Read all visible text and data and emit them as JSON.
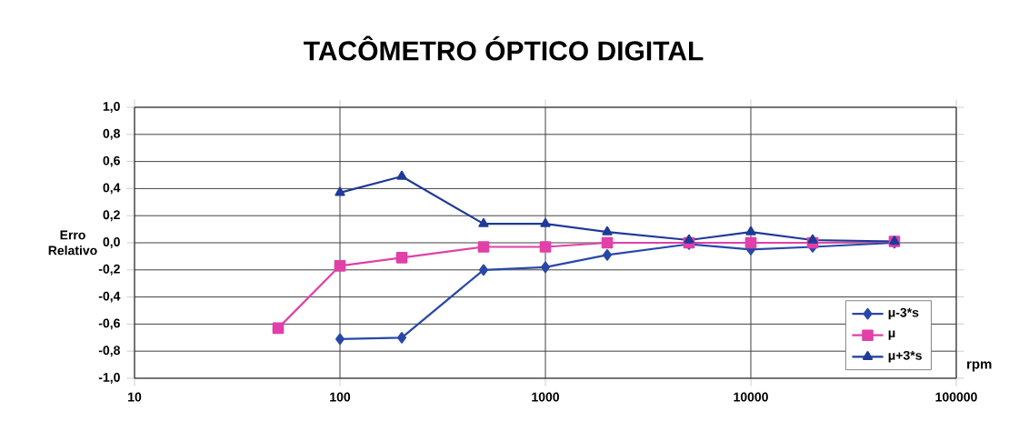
{
  "chart_data": {
    "type": "line",
    "title": "TACÔMETRO ÓPTICO DIGITAL",
    "xlabel": "rpm",
    "ylabel": "Erro Relativo",
    "x": [
      50,
      100,
      200,
      500,
      1000,
      2000,
      5000,
      10000,
      20000,
      50000
    ],
    "series": [
      {
        "name": "μ-3*s",
        "color": "#2848a8",
        "marker": "diamond",
        "values": [
          null,
          -0.71,
          -0.7,
          -0.2,
          -0.18,
          -0.09,
          -0.01,
          -0.05,
          -0.03,
          0.0
        ]
      },
      {
        "name": "μ",
        "color": "#e040a8",
        "marker": "square",
        "values": [
          -0.63,
          -0.17,
          -0.11,
          -0.03,
          -0.03,
          0.0,
          0.0,
          0.0,
          0.0,
          0.01
        ]
      },
      {
        "name": "μ+3*s",
        "color": "#1f3a98",
        "marker": "triangle",
        "values": [
          null,
          0.37,
          0.49,
          0.14,
          0.14,
          0.08,
          0.02,
          0.08,
          0.02,
          0.01
        ]
      }
    ],
    "log": "x",
    "xlim": [
      10,
      100000
    ],
    "xticks": [
      10,
      100,
      1000,
      10000,
      100000
    ],
    "ylim": [
      -1,
      1
    ],
    "yticks": [
      {
        "value": -1,
        "label": "-1,0"
      },
      {
        "value": -0.8,
        "label": "-0,8"
      },
      {
        "value": -0.6,
        "label": "-0,6"
      },
      {
        "value": -0.4,
        "label": "-0,4"
      },
      {
        "value": -0.2,
        "label": "-0,2"
      },
      {
        "value": 0,
        "label": "0,0"
      },
      {
        "value": 0.2,
        "label": "0,2"
      },
      {
        "value": 0.4,
        "label": "0,4"
      },
      {
        "value": 0.6,
        "label": "0,6"
      },
      {
        "value": 0.8,
        "label": "0,8"
      },
      {
        "value": 1,
        "label": "1,0"
      }
    ],
    "grid": true,
    "legend": "bottom right",
    "line_style": "solid"
  }
}
